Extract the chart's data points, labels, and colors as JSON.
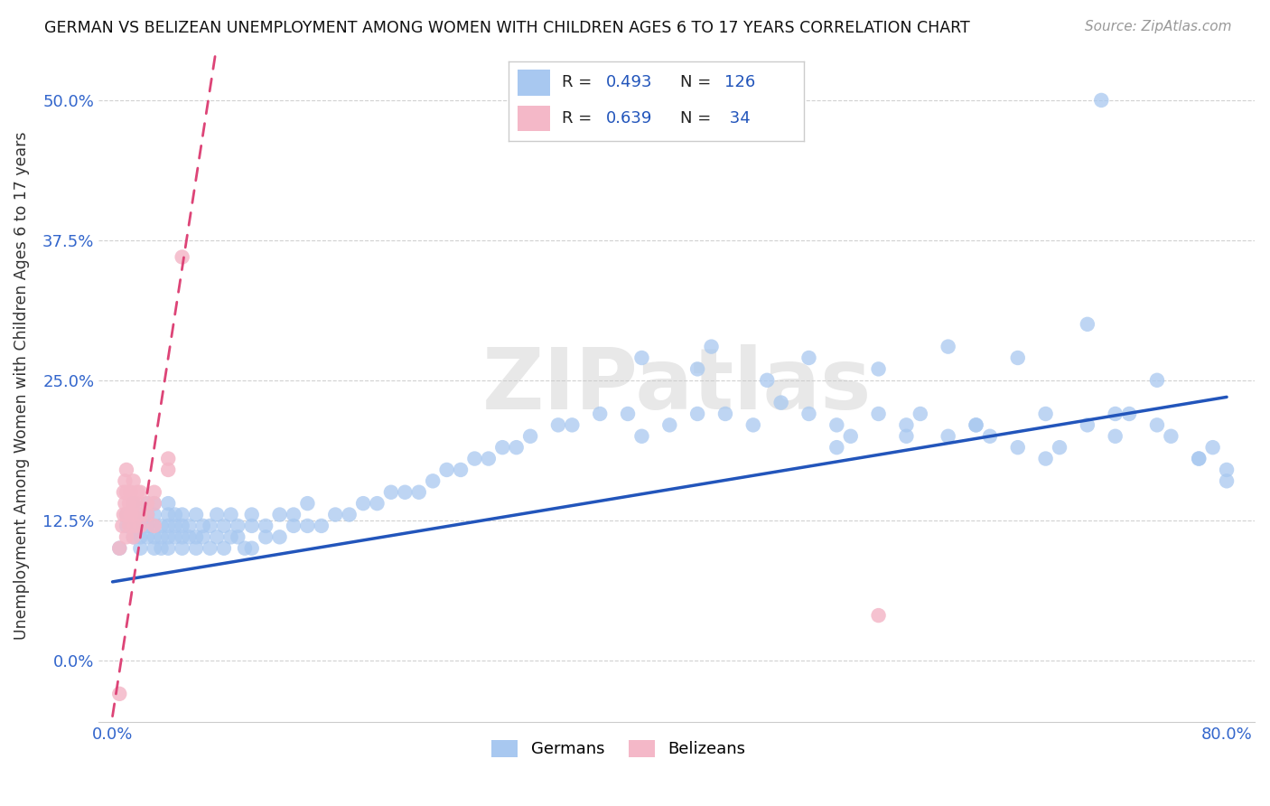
{
  "title": "GERMAN VS BELIZEAN UNEMPLOYMENT AMONG WOMEN WITH CHILDREN AGES 6 TO 17 YEARS CORRELATION CHART",
  "source": "Source: ZipAtlas.com",
  "ylabel": "Unemployment Among Women with Children Ages 6 to 17 years",
  "legend_german": "Germans",
  "legend_belizean": "Belizeans",
  "r_german": 0.493,
  "n_german": 126,
  "r_belizean": 0.639,
  "n_belizean": 34,
  "xlim": [
    -0.01,
    0.82
  ],
  "ylim": [
    -0.055,
    0.545
  ],
  "yticks": [
    0.0,
    0.125,
    0.25,
    0.375,
    0.5
  ],
  "ytick_labels": [
    "0.0%",
    "12.5%",
    "25.0%",
    "37.5%",
    "50.0%"
  ],
  "xticks": [
    0.0,
    0.1,
    0.2,
    0.3,
    0.4,
    0.5,
    0.6,
    0.7,
    0.8
  ],
  "xtick_labels": [
    "0.0%",
    "",
    "",
    "",
    "",
    "",
    "",
    "",
    "80.0%"
  ],
  "color_german": "#a8c8f0",
  "color_belizean": "#f4b8c8",
  "trendline_german_color": "#2255bb",
  "trendline_belizean_color": "#dd4477",
  "background_color": "#ffffff",
  "watermark_text": "ZIPatlas",
  "trendline_german_x0": 0.0,
  "trendline_german_y0": 0.07,
  "trendline_german_x1": 0.8,
  "trendline_german_y1": 0.235,
  "trendline_belizean_x0": 0.0,
  "trendline_belizean_y0": -0.05,
  "trendline_belizean_x1": 0.06,
  "trendline_belizean_y1": 0.45,
  "german_x": [
    0.005,
    0.01,
    0.01,
    0.015,
    0.015,
    0.02,
    0.02,
    0.02,
    0.02,
    0.025,
    0.025,
    0.025,
    0.025,
    0.03,
    0.03,
    0.03,
    0.03,
    0.03,
    0.035,
    0.035,
    0.035,
    0.04,
    0.04,
    0.04,
    0.04,
    0.04,
    0.045,
    0.045,
    0.045,
    0.05,
    0.05,
    0.05,
    0.05,
    0.055,
    0.055,
    0.06,
    0.06,
    0.06,
    0.065,
    0.065,
    0.07,
    0.07,
    0.075,
    0.075,
    0.08,
    0.08,
    0.085,
    0.085,
    0.09,
    0.09,
    0.095,
    0.1,
    0.1,
    0.1,
    0.11,
    0.11,
    0.12,
    0.12,
    0.13,
    0.13,
    0.14,
    0.14,
    0.15,
    0.16,
    0.17,
    0.18,
    0.19,
    0.2,
    0.21,
    0.22,
    0.23,
    0.24,
    0.25,
    0.26,
    0.27,
    0.28,
    0.29,
    0.3,
    0.32,
    0.33,
    0.35,
    0.37,
    0.38,
    0.4,
    0.42,
    0.44,
    0.46,
    0.48,
    0.5,
    0.52,
    0.53,
    0.55,
    0.57,
    0.58,
    0.6,
    0.62,
    0.63,
    0.65,
    0.67,
    0.68,
    0.7,
    0.72,
    0.73,
    0.75,
    0.76,
    0.78,
    0.79,
    0.8,
    0.47,
    0.42,
    0.38,
    0.52,
    0.57,
    0.62,
    0.67,
    0.43,
    0.5,
    0.55,
    0.6,
    0.65,
    0.7,
    0.72,
    0.75,
    0.78,
    0.8,
    0.71
  ],
  "german_y": [
    0.1,
    0.12,
    0.13,
    0.11,
    0.14,
    0.1,
    0.12,
    0.13,
    0.11,
    0.12,
    0.11,
    0.13,
    0.14,
    0.1,
    0.11,
    0.12,
    0.13,
    0.14,
    0.1,
    0.12,
    0.11,
    0.1,
    0.12,
    0.11,
    0.13,
    0.14,
    0.11,
    0.12,
    0.13,
    0.1,
    0.11,
    0.12,
    0.13,
    0.11,
    0.12,
    0.1,
    0.11,
    0.13,
    0.11,
    0.12,
    0.1,
    0.12,
    0.11,
    0.13,
    0.1,
    0.12,
    0.11,
    0.13,
    0.11,
    0.12,
    0.1,
    0.1,
    0.12,
    0.13,
    0.11,
    0.12,
    0.11,
    0.13,
    0.12,
    0.13,
    0.12,
    0.14,
    0.12,
    0.13,
    0.13,
    0.14,
    0.14,
    0.15,
    0.15,
    0.15,
    0.16,
    0.17,
    0.17,
    0.18,
    0.18,
    0.19,
    0.19,
    0.2,
    0.21,
    0.21,
    0.22,
    0.22,
    0.2,
    0.21,
    0.22,
    0.22,
    0.21,
    0.23,
    0.22,
    0.21,
    0.2,
    0.22,
    0.21,
    0.22,
    0.2,
    0.21,
    0.2,
    0.19,
    0.18,
    0.19,
    0.21,
    0.2,
    0.22,
    0.21,
    0.2,
    0.18,
    0.19,
    0.17,
    0.25,
    0.26,
    0.27,
    0.19,
    0.2,
    0.21,
    0.22,
    0.28,
    0.27,
    0.26,
    0.28,
    0.27,
    0.3,
    0.22,
    0.25,
    0.18,
    0.16,
    0.5
  ],
  "belizean_x": [
    0.005,
    0.007,
    0.008,
    0.008,
    0.009,
    0.009,
    0.01,
    0.01,
    0.01,
    0.01,
    0.012,
    0.012,
    0.013,
    0.013,
    0.015,
    0.015,
    0.015,
    0.015,
    0.016,
    0.017,
    0.018,
    0.02,
    0.02,
    0.02,
    0.025,
    0.025,
    0.03,
    0.03,
    0.04,
    0.05,
    0.55,
    0.04,
    0.03,
    0.005
  ],
  "belizean_y": [
    0.1,
    0.12,
    0.13,
    0.15,
    0.14,
    0.16,
    0.11,
    0.13,
    0.15,
    0.17,
    0.12,
    0.14,
    0.13,
    0.15,
    0.11,
    0.13,
    0.14,
    0.16,
    0.12,
    0.14,
    0.15,
    0.12,
    0.13,
    0.15,
    0.13,
    0.14,
    0.14,
    0.15,
    0.18,
    0.36,
    0.04,
    0.17,
    0.12,
    -0.03
  ]
}
